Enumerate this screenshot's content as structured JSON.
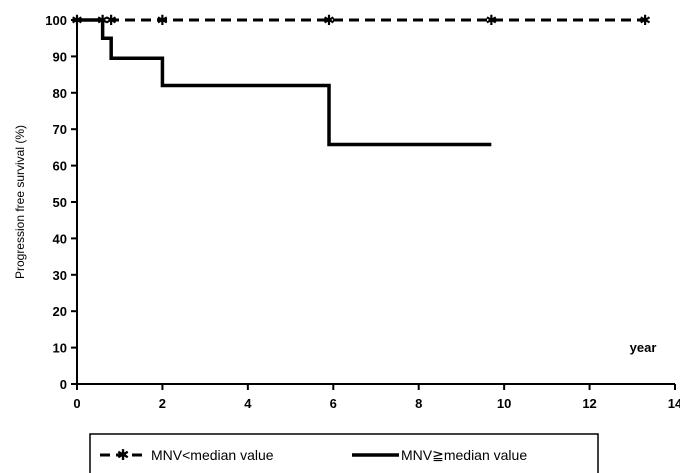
{
  "chart_data": {
    "type": "line",
    "title": "",
    "xlabel": "year",
    "ylabel": "Progression free survival (%)",
    "xlim": [
      0,
      14
    ],
    "ylim": [
      0,
      100
    ],
    "x_ticks": [
      0,
      2,
      4,
      6,
      8,
      10,
      12,
      14
    ],
    "y_ticks": [
      0,
      10,
      20,
      30,
      40,
      50,
      60,
      70,
      80,
      90,
      100
    ],
    "grid": false,
    "legend_position": "bottom",
    "series": [
      {
        "name": "MNV<median value",
        "style": "dashed",
        "marker": "asterisk",
        "color": "#000000",
        "x": [
          0,
          0.6,
          0.8,
          2.0,
          5.9,
          9.7,
          13.3
        ],
        "y": [
          100,
          100,
          100,
          100,
          100,
          100,
          100
        ]
      },
      {
        "name": "MNV≧median value",
        "style": "solid-step",
        "marker": "none",
        "color": "#000000",
        "x": [
          0,
          0.6,
          0.8,
          2.0,
          5.9,
          9.7
        ],
        "y": [
          100,
          95,
          89.5,
          82,
          65.8,
          65.8
        ]
      }
    ]
  }
}
